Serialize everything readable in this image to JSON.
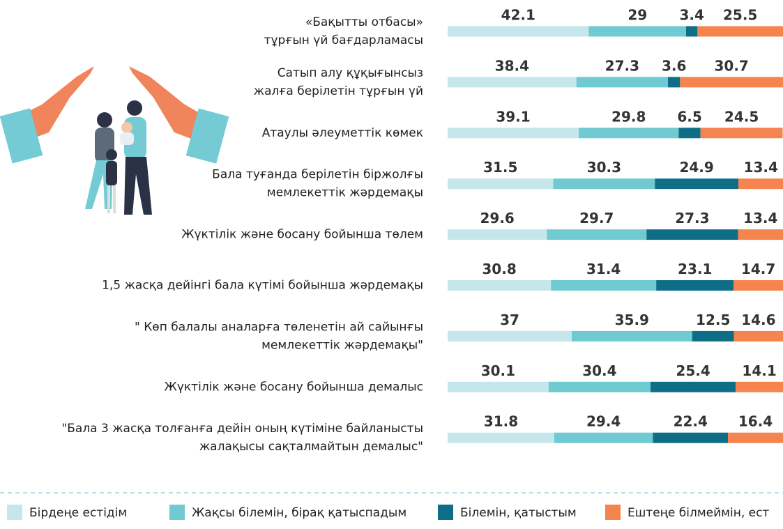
{
  "chart_data": {
    "type": "stacked_bar",
    "orientation": "horizontal",
    "categories": [
      [
        "«Бақытты отбасы»",
        "тұрғын үй бағдарламасы"
      ],
      [
        "Сатып алу құқығынсыз",
        "жалға берілетін тұрғын үй"
      ],
      [
        "Атаулы әлеуметтік көмек"
      ],
      [
        "Бала туғанда берілетін біржолғы",
        "мемлекеттік жәрдемақы"
      ],
      [
        "Жүктілік және босану бойынша төлем"
      ],
      [
        "1,5 жасқа дейінгі бала күтімі бойынша жәрдемақы"
      ],
      [
        "\" Көп балалы аналарға төленетін ай сайынғы",
        "мемлекеттік жәрдемақы\""
      ],
      [
        "Жүктілік және босану бойынша демалыс"
      ],
      [
        "\"Бала 3 жасқа толғанға дейін оның күтіміне байланысты",
        "жалақысы сақталмайтын демалыс\""
      ]
    ],
    "series": [
      {
        "name": "Бірдеңе естідім",
        "color": "#c5e6ea",
        "values": [
          42.1,
          38.4,
          39.1,
          31.5,
          29.6,
          30.8,
          37,
          30.1,
          31.8
        ]
      },
      {
        "name": "Жақсы білемін, бірақ қатыспадым",
        "color": "#6fcad1",
        "values": [
          29,
          27.3,
          29.8,
          30.3,
          29.7,
          31.4,
          35.9,
          30.4,
          29.4
        ]
      },
      {
        "name": "Білемін, қатыстым",
        "color": "#0e6e86",
        "values": [
          3.4,
          3.6,
          6.5,
          24.9,
          27.3,
          23.1,
          12.5,
          25.4,
          22.4
        ]
      },
      {
        "name": "Ештеңе білмеймін, ест",
        "color": "#f5844f",
        "values": [
          25.5,
          30.7,
          24.5,
          13.4,
          13.4,
          14.7,
          14.6,
          14.1,
          16.4
        ]
      }
    ],
    "xlim": [
      0,
      100
    ]
  }
}
